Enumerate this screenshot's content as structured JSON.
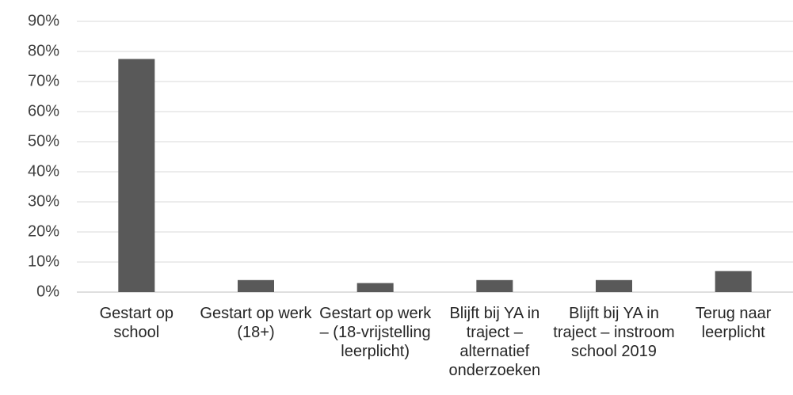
{
  "chart_data": {
    "type": "bar",
    "categories": [
      "Gestart op school",
      "Gestart op werk (18+)",
      "Gestart op werk – (18-vrijstelling leerplicht)",
      "Blijft bij YA in traject – alternatief onderzoeken",
      "Blijft bij YA in traject – instroom school 2019",
      "Terug naar leerplicht"
    ],
    "values": [
      77.5,
      4,
      3,
      4,
      4,
      7
    ],
    "color": "#595959",
    "ylim": [
      0,
      90
    ],
    "yticks": [
      {
        "value": 0,
        "label": "0%"
      },
      {
        "value": 10,
        "label": "10%"
      },
      {
        "value": 20,
        "label": "20%"
      },
      {
        "value": 30,
        "label": "30%"
      },
      {
        "value": 40,
        "label": "40%"
      },
      {
        "value": 50,
        "label": "50%"
      },
      {
        "value": 60,
        "label": "60%"
      },
      {
        "value": 70,
        "label": "70%"
      },
      {
        "value": 80,
        "label": "80%"
      },
      {
        "value": 90,
        "label": "90%"
      }
    ],
    "grid": true
  }
}
